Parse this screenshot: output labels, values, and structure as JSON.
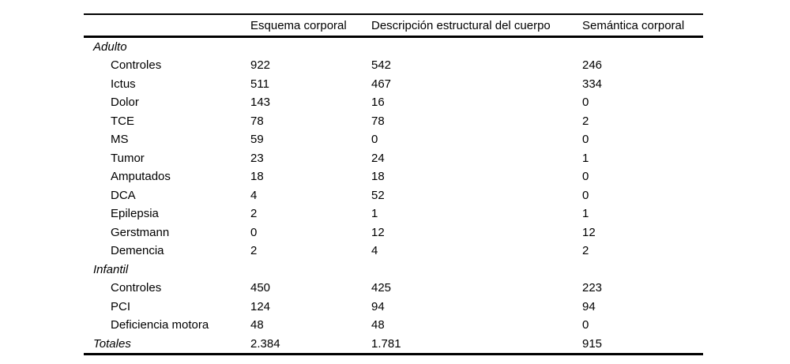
{
  "table": {
    "columns": [
      "Esquema corporal",
      "Descripción estructural del cuerpo",
      "Semántica corporal"
    ],
    "rows": [
      {
        "label": "Adulto",
        "type": "section",
        "values": [
          "",
          "",
          ""
        ]
      },
      {
        "label": "Controles",
        "type": "item",
        "values": [
          "922",
          "542",
          "246"
        ]
      },
      {
        "label": "Ictus",
        "type": "item",
        "values": [
          "511",
          "467",
          "334"
        ]
      },
      {
        "label": "Dolor",
        "type": "item",
        "values": [
          "143",
          "16",
          "0"
        ]
      },
      {
        "label": "TCE",
        "type": "item",
        "values": [
          "78",
          "78",
          "2"
        ]
      },
      {
        "label": "MS",
        "type": "item",
        "values": [
          "59",
          "0",
          "0"
        ]
      },
      {
        "label": "Tumor",
        "type": "item",
        "values": [
          "23",
          "24",
          "1"
        ]
      },
      {
        "label": "Amputados",
        "type": "item",
        "values": [
          "18",
          "18",
          "0"
        ]
      },
      {
        "label": "DCA",
        "type": "item",
        "values": [
          "4",
          "52",
          "0"
        ]
      },
      {
        "label": "Epilepsia",
        "type": "item",
        "values": [
          "2",
          "1",
          "1"
        ]
      },
      {
        "label": "Gerstmann",
        "type": "item",
        "values": [
          "0",
          "12",
          "12"
        ]
      },
      {
        "label": "Demencia",
        "type": "item",
        "values": [
          "2",
          "4",
          "2"
        ]
      },
      {
        "label": "Infantil",
        "type": "section",
        "values": [
          "",
          "",
          ""
        ]
      },
      {
        "label": "Controles",
        "type": "item",
        "values": [
          "450",
          "425",
          "223"
        ]
      },
      {
        "label": "PCI",
        "type": "item",
        "values": [
          "124",
          "94",
          "94"
        ]
      },
      {
        "label": "Deficiencia motora",
        "type": "item",
        "values": [
          "48",
          "48",
          "0"
        ]
      },
      {
        "label": "Totales",
        "type": "total",
        "values": [
          "2.384",
          "1.781",
          "915"
        ]
      }
    ]
  }
}
